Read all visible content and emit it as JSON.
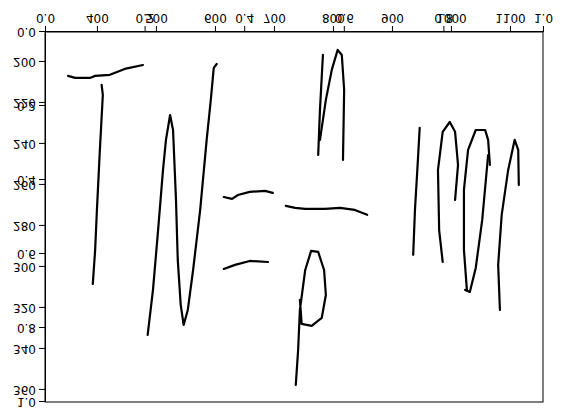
{
  "chart_data": {
    "type": "line",
    "xlim": [
      312,
      1156
    ],
    "xticks": [
      400,
      500,
      600,
      700,
      800,
      900,
      1000,
      1100
    ],
    "ylim": [
      185.4,
      365.9
    ],
    "yticks": [
      200,
      220,
      240,
      260,
      280,
      300,
      320,
      340,
      360
    ],
    "x2lim": [
      0,
      1
    ],
    "x2ticks": [
      {
        "value": 0,
        "label": "0.0"
      },
      {
        "value": 0.2,
        "label": "0.2"
      },
      {
        "value": 0.4,
        "label": "0.4"
      },
      {
        "value": 0.6,
        "label": "0.6"
      },
      {
        "value": 0.8,
        "label": "0.8"
      },
      {
        "value": 1,
        "label": "1.0"
      }
    ],
    "y2lim": [
      0,
      1
    ],
    "y2ticks": [
      {
        "value": 0,
        "label": "0.0"
      },
      {
        "value": 0.2,
        "label": "0.2"
      },
      {
        "value": 0.4,
        "label": "0.4"
      },
      {
        "value": 0.6,
        "label": "0.6"
      },
      {
        "value": 0.8,
        "label": "0.8"
      },
      {
        "value": 1,
        "label": "1.0"
      }
    ],
    "color": "#000000",
    "series": [
      {
        "x": [
          351,
          363,
          388,
          397,
          422,
          447,
          478
        ],
        "values": [
          206.8,
          207.8,
          207.8,
          206.8,
          206.3,
          203.4,
          201.5
        ]
      },
      {
        "x": [
          408,
          410,
          405,
          400,
          397,
          393
        ],
        "values": [
          211.2,
          216.1,
          242.9,
          272.2,
          291.7,
          308.3
        ]
      },
      {
        "x": [
          486,
          495,
          503,
          512,
          517,
          524,
          529,
          534,
          537,
          542,
          547,
          554,
          563,
          575,
          586,
          593,
          598,
          603
        ],
        "values": [
          333.2,
          311.2,
          284.4,
          252.7,
          238,
          225.9,
          233.2,
          267.3,
          296.6,
          318.5,
          328.3,
          321,
          301.5,
          272.2,
          238,
          218.5,
          202.9,
          201
        ]
      },
      {
        "x": [
          615,
          629,
          639,
          659,
          685,
          698
        ],
        "values": [
          265.9,
          266.8,
          264.9,
          263.4,
          262.9,
          263.9
        ]
      },
      {
        "x": [
          615,
          634,
          659,
          690
        ],
        "values": [
          301,
          299,
          297.1,
          297.6
        ]
      },
      {
        "x": [
          720,
          736,
          753,
          786,
          812,
          837,
          858
        ],
        "values": [
          270.2,
          271.2,
          271.7,
          271.7,
          271.2,
          272.2,
          274.6
        ]
      },
      {
        "x": [
          737,
          741,
          744,
          753,
          763,
          775,
          785,
          788,
          781,
          764,
          747,
          744
        ],
        "values": [
          357.6,
          340.5,
          321,
          301.5,
          292.2,
          292.7,
          301.5,
          313.7,
          324.9,
          328.8,
          327.8,
          316.1
        ]
      },
      {
        "x": [
          783,
          778,
          775
        ],
        "values": [
          196.6,
          223.4,
          245.4
        ]
      },
      {
        "x": [
          778,
          788,
          798,
          808,
          815,
          819,
          817
        ],
        "values": [
          238,
          218.5,
          203.9,
          194.1,
          196.6,
          213.7,
          247.8
        ]
      },
      {
        "x": [
          936,
          939,
          944,
          947
        ],
        "values": [
          294.1,
          272.2,
          247.8,
          232.2
        ]
      },
      {
        "x": [
          986,
          980,
          978,
          986,
          998,
          1007,
          1012,
          1007
        ],
        "values": [
          297.6,
          282,
          252.7,
          234.1,
          229.3,
          234.1,
          250.2,
          267.3
        ]
      },
      {
        "x": [
          1027,
          1022,
          1022,
          1029,
          1042,
          1058,
          1063,
          1066
        ],
        "values": [
          311.2,
          291.7,
          262.4,
          242.9,
          233.2,
          233.2,
          238,
          250.2
        ]
      },
      {
        "x": [
          1063,
          1053,
          1042,
          1032,
          1024
        ],
        "values": [
          245.4,
          277.1,
          300.5,
          312.2,
          311.2
        ]
      },
      {
        "x": [
          1083,
          1080,
          1086,
          1097,
          1108,
          1114,
          1115
        ],
        "values": [
          321,
          299,
          274.6,
          252.7,
          238,
          242.9,
          260
        ]
      }
    ]
  }
}
